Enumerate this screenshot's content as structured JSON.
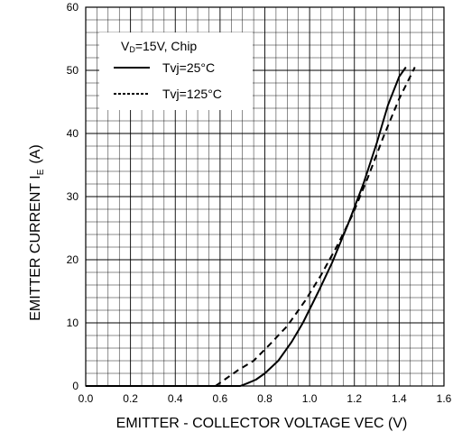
{
  "chart_data": {
    "type": "line",
    "xlabel": "EMITTER - COLLECTOR VOLTAGE VEC (V)",
    "ylabel_main": "EMITTER CURRENT I",
    "ylabel_sub": "E",
    "ylabel_unit": "(A)",
    "xlim": [
      0.0,
      1.6
    ],
    "ylim": [
      0,
      60
    ],
    "x_ticks": [
      "0.0",
      "0.2",
      "0.4",
      "0.6",
      "0.8",
      "1.0",
      "1.2",
      "1.4",
      "1.6"
    ],
    "y_ticks": [
      "0",
      "10",
      "20",
      "30",
      "40",
      "50",
      "60"
    ],
    "grid": true,
    "legend_position": "top-left",
    "legend_condition_main": "V",
    "legend_condition_sub": "D",
    "legend_condition_rest": "=15V, Chip",
    "colors": {
      "line": "#000000",
      "grid": "#000000",
      "background": "#ffffff"
    },
    "series": [
      {
        "name": "Tvj=25°C",
        "style": "solid",
        "points": [
          [
            0.0,
            0
          ],
          [
            0.69,
            0
          ],
          [
            0.72,
            0.4
          ],
          [
            0.76,
            1.0
          ],
          [
            0.8,
            2.0
          ],
          [
            0.86,
            4.0
          ],
          [
            0.92,
            7.0
          ],
          [
            0.97,
            10.0
          ],
          [
            1.04,
            15.0
          ],
          [
            1.1,
            19.5
          ],
          [
            1.17,
            25.5
          ],
          [
            1.24,
            32.0
          ],
          [
            1.3,
            38.5
          ],
          [
            1.35,
            44.5
          ],
          [
            1.4,
            49.0
          ],
          [
            1.43,
            50.5
          ]
        ]
      },
      {
        "name": "Tvj=125°C",
        "style": "dashed",
        "points": [
          [
            0.58,
            0
          ],
          [
            0.62,
            1.0
          ],
          [
            0.68,
            2.5
          ],
          [
            0.75,
            4.0
          ],
          [
            0.82,
            6.5
          ],
          [
            0.9,
            9.5
          ],
          [
            0.98,
            13.5
          ],
          [
            1.05,
            17.5
          ],
          [
            1.12,
            22.0
          ],
          [
            1.19,
            27.0
          ],
          [
            1.26,
            33.0
          ],
          [
            1.33,
            39.5
          ],
          [
            1.4,
            45.5
          ],
          [
            1.47,
            50.5
          ]
        ]
      }
    ]
  }
}
